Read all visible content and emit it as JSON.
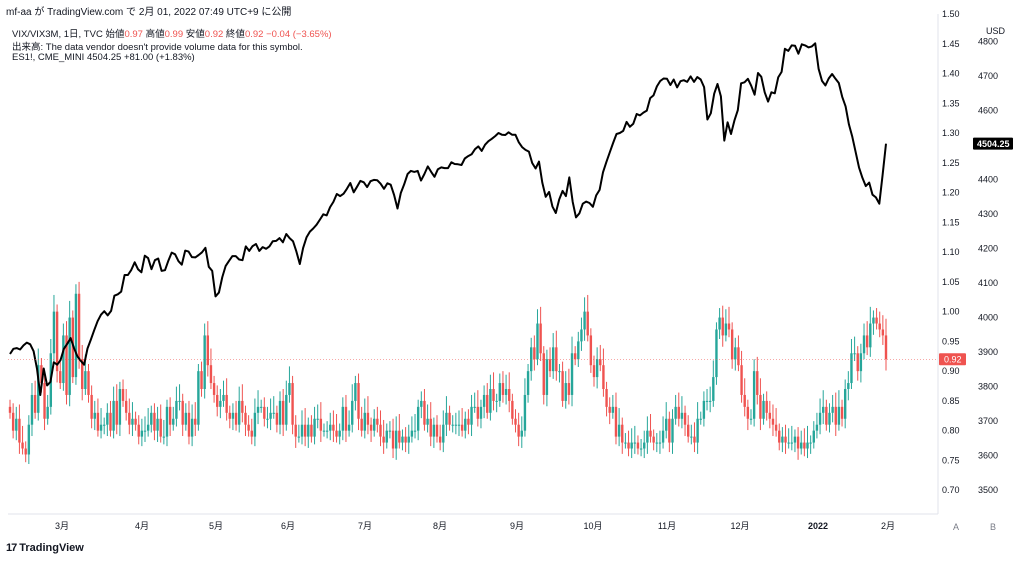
{
  "header": {
    "text": "mf-aa が TradingView.com で 2月 01, 2022 07:49 UTC+9 に公開"
  },
  "legend": {
    "symbol": "VIX/VIX3M, 1日, TVC",
    "open_label": "始値",
    "open": "0.97",
    "high_label": "高値",
    "high": "0.99",
    "low_label": "安値",
    "low": "0.92",
    "close_label": "終値",
    "close": "0.92",
    "change": "−0.04 (−3.65%)",
    "volume_note": "出来高: The data vendor doesn't provide volume data for this symbol.",
    "overlay_symbol": "ES1!, CME_MINI",
    "overlay_value": "4504.25",
    "overlay_change": "+81.00 (+1.83%)"
  },
  "logo": {
    "text": "TradingView",
    "mark": "17"
  },
  "scale_buttons": {
    "auto": "A",
    "b": "B"
  },
  "colors": {
    "up": "#26a69a",
    "down": "#ef5350",
    "line": "#000000",
    "text": "#131722",
    "muted": "#787b86"
  },
  "chart_data": {
    "type": "candlestick+line",
    "x_tick_labels": [
      "3月",
      "4月",
      "5月",
      "6月",
      "7月",
      "8月",
      "9月",
      "10月",
      "11月",
      "12月",
      "2022",
      "2月"
    ],
    "left_axis": {
      "unit": "",
      "ticks": [
        0.7,
        0.75,
        0.8,
        0.85,
        0.9,
        0.95,
        1.0,
        1.05,
        1.1,
        1.15,
        1.2,
        1.25,
        1.3,
        1.35,
        1.4,
        1.45,
        1.5
      ],
      "range": [
        0.66,
        1.5
      ]
    },
    "right_axis": {
      "unit": "USD",
      "ticks": [
        3500,
        3600,
        3700,
        3800,
        3900,
        4000,
        4100,
        4200,
        4300,
        4400,
        4500,
        4600,
        4700,
        4800
      ],
      "range": [
        3430,
        4880
      ]
    },
    "last_labels": {
      "ratio": "0.92",
      "es": "4504.25"
    },
    "ratio_series": {
      "name": "VIX/VIX3M",
      "closes": [
        0.83,
        0.8,
        0.82,
        0.78,
        0.77,
        0.76,
        0.81,
        0.86,
        0.83,
        0.91,
        0.88,
        0.82,
        0.84,
        0.93,
        1.0,
        0.9,
        0.88,
        0.96,
        0.86,
        0.99,
        0.89,
        1.03,
        0.92,
        0.87,
        0.9,
        0.86,
        0.82,
        0.83,
        0.8,
        0.81,
        0.81,
        0.83,
        0.8,
        0.85,
        0.81,
        0.87,
        0.85,
        0.83,
        0.81,
        0.82,
        0.81,
        0.79,
        0.8,
        0.8,
        0.81,
        0.83,
        0.8,
        0.82,
        0.79,
        0.79,
        0.84,
        0.81,
        0.82,
        0.85,
        0.85,
        0.81,
        0.83,
        0.79,
        0.82,
        0.81,
        0.9,
        0.87,
        0.96,
        0.91,
        0.88,
        0.86,
        0.84,
        0.85,
        0.86,
        0.83,
        0.82,
        0.83,
        0.81,
        0.85,
        0.83,
        0.81,
        0.8,
        0.79,
        0.83,
        0.84,
        0.84,
        0.82,
        0.82,
        0.83,
        0.83,
        0.81,
        0.85,
        0.81,
        0.86,
        0.88,
        0.81,
        0.79,
        0.79,
        0.81,
        0.79,
        0.81,
        0.79,
        0.82,
        0.82,
        0.8,
        0.8,
        0.8,
        0.81,
        0.8,
        0.79,
        0.8,
        0.84,
        0.8,
        0.81,
        0.85,
        0.88,
        0.82,
        0.8,
        0.83,
        0.81,
        0.8,
        0.82,
        0.81,
        0.79,
        0.78,
        0.8,
        0.8,
        0.77,
        0.8,
        0.78,
        0.79,
        0.78,
        0.79,
        0.8,
        0.8,
        0.84,
        0.85,
        0.81,
        0.82,
        0.79,
        0.81,
        0.79,
        0.78,
        0.81,
        0.83,
        0.81,
        0.81,
        0.81,
        0.81,
        0.8,
        0.82,
        0.81,
        0.84,
        0.84,
        0.82,
        0.84,
        0.86,
        0.83,
        0.87,
        0.85,
        0.85,
        0.88,
        0.86,
        0.87,
        0.85,
        0.82,
        0.81,
        0.79,
        0.8,
        0.86,
        0.9,
        0.94,
        0.92,
        0.98,
        0.93,
        0.86,
        0.92,
        0.9,
        0.94,
        0.9,
        0.9,
        0.85,
        0.88,
        0.86,
        0.93,
        0.92,
        0.95,
        0.97,
        1.0,
        0.96,
        0.91,
        0.89,
        0.92,
        0.91,
        0.87,
        0.84,
        0.83,
        0.84,
        0.79,
        0.81,
        0.78,
        0.78,
        0.77,
        0.78,
        0.78,
        0.77,
        0.77,
        0.78,
        0.8,
        0.79,
        0.78,
        0.78,
        0.78,
        0.8,
        0.82,
        0.78,
        0.82,
        0.84,
        0.82,
        0.83,
        0.81,
        0.79,
        0.79,
        0.78,
        0.82,
        0.82,
        0.85,
        0.85,
        0.85,
        0.89,
        0.97,
        0.99,
        0.96,
        0.98,
        0.97,
        0.92,
        0.94,
        0.91,
        0.86,
        0.84,
        0.82,
        0.82,
        0.9,
        0.86,
        0.82,
        0.85,
        0.83,
        0.82,
        0.81,
        0.8,
        0.78,
        0.79,
        0.78,
        0.78,
        0.78,
        0.79,
        0.77,
        0.78,
        0.77,
        0.78,
        0.78,
        0.8,
        0.81,
        0.83,
        0.84,
        0.81,
        0.83,
        0.84,
        0.81,
        0.84,
        0.82,
        0.87,
        0.88,
        0.93,
        0.93,
        0.9,
        0.93,
        0.96,
        0.94,
        0.98,
        0.99,
        0.98,
        0.97,
        0.96,
        0.92
      ]
    },
    "es_series": {
      "name": "ES1!, CME_MINI",
      "closes": [
        3894,
        3909,
        3911,
        3907,
        3919,
        3927,
        3922,
        3902,
        3851,
        3775,
        3852,
        3803,
        3813,
        3870,
        3863,
        3876,
        3909,
        3924,
        3940,
        3911,
        3887,
        3874,
        3863,
        3910,
        3936,
        3963,
        3989,
        4008,
        4018,
        4006,
        4019,
        4063,
        4067,
        4075,
        4123,
        4123,
        4138,
        4160,
        4140,
        4131,
        4179,
        4172,
        4140,
        4166,
        4171,
        4135,
        4137,
        4165,
        4188,
        4183,
        4163,
        4153,
        4194,
        4191,
        4175,
        4174,
        4181,
        4189,
        4202,
        4147,
        4135,
        4061,
        4072,
        4117,
        4149,
        4164,
        4178,
        4178,
        4168,
        4166,
        4206,
        4193,
        4207,
        4213,
        4193,
        4204,
        4199,
        4206,
        4221,
        4222,
        4230,
        4218,
        4242,
        4230,
        4221,
        4191,
        4155,
        4201,
        4232,
        4249,
        4258,
        4269,
        4284,
        4299,
        4296,
        4320,
        4335,
        4358,
        4352,
        4359,
        4373,
        4390,
        4363,
        4379,
        4396,
        4392,
        4378,
        4395,
        4399,
        4398,
        4388,
        4373,
        4389,
        4385,
        4355,
        4316,
        4361,
        4386,
        4416,
        4425,
        4422,
        4425,
        4397,
        4416,
        4438,
        4422,
        4408,
        4430,
        4435,
        4433,
        4433,
        4450,
        4445,
        4444,
        4442,
        4461,
        4468,
        4473,
        4488,
        4496,
        4483,
        4501,
        4511,
        4518,
        4526,
        4535,
        4530,
        4529,
        4537,
        4530,
        4530,
        4508,
        4494,
        4486,
        4481,
        4448,
        4432,
        4452,
        4391,
        4350,
        4364,
        4322,
        4303,
        4342,
        4367,
        4352,
        4406,
        4335,
        4290,
        4302,
        4330,
        4336,
        4332,
        4321,
        4354,
        4370,
        4421,
        4451,
        4478,
        4506,
        4532,
        4535,
        4541,
        4567,
        4553,
        4562,
        4590,
        4586,
        4594,
        4600,
        4636,
        4644,
        4670,
        4686,
        4693,
        4692,
        4674,
        4690,
        4667,
        4685,
        4688,
        4683,
        4699,
        4683,
        4697,
        4690,
        4668,
        4574,
        4592,
        4649,
        4677,
        4641,
        4513,
        4566,
        4532,
        4571,
        4601,
        4679,
        4682,
        4692,
        4672,
        4646,
        4709,
        4698,
        4653,
        4626,
        4653,
        4650,
        4696,
        4712,
        4779,
        4773,
        4789,
        4788,
        4765,
        4792,
        4789,
        4783,
        4786,
        4795,
        4721,
        4686,
        4673,
        4693,
        4706,
        4692,
        4680,
        4640,
        4612,
        4560,
        4524,
        4479,
        4435,
        4405,
        4381,
        4391,
        4356,
        4348,
        4330,
        4413,
        4504
      ]
    }
  }
}
